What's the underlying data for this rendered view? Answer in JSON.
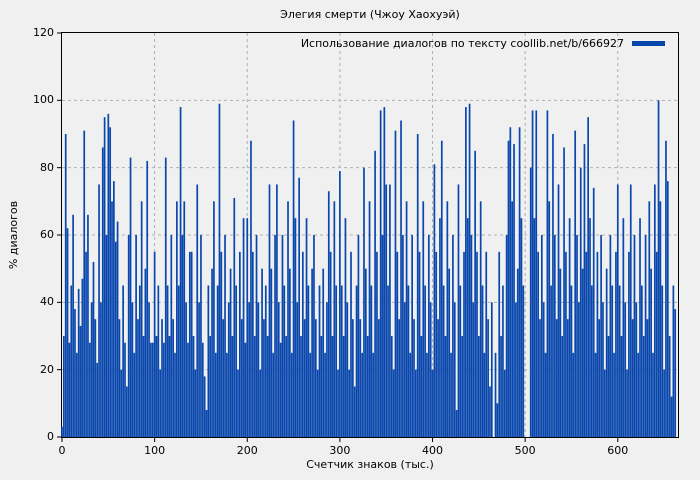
{
  "page_background": "#f0f0f0",
  "chart_data": {
    "type": "bar",
    "style": "impulses",
    "title": "Элегия смерти (Чжоу Хаохуэй)",
    "series_name": "Использование диалогов по тексту coollib.net/b/666927",
    "xlabel": "Счетчик знаков (тыс.)",
    "ylabel": "% диалогов",
    "xlim": [
      0,
      665
    ],
    "ylim": [
      0,
      120
    ],
    "x_ticks": [
      0,
      100,
      200,
      300,
      400,
      500,
      600
    ],
    "y_ticks": [
      0,
      20,
      40,
      60,
      80,
      100,
      120
    ],
    "grid": true,
    "legend_position": "top-right-inside",
    "bar_color": "#0a47ad",
    "axis_color": "#000000",
    "grid_color": "#b0b0b0",
    "x_start": 0,
    "x_step": 2,
    "values": [
      3,
      30,
      90,
      62,
      28,
      45,
      66,
      38,
      25,
      44,
      33,
      47,
      91,
      55,
      66,
      28,
      40,
      52,
      35,
      22,
      75,
      40,
      86,
      95,
      60,
      96,
      92,
      70,
      76,
      58,
      64,
      35,
      20,
      45,
      28,
      15,
      60,
      83,
      40,
      25,
      60,
      35,
      45,
      70,
      30,
      50,
      82,
      40,
      28,
      28,
      55,
      30,
      45,
      20,
      35,
      28,
      83,
      45,
      30,
      60,
      35,
      25,
      70,
      45,
      98,
      60,
      70,
      40,
      28,
      55,
      55,
      30,
      20,
      75,
      40,
      60,
      28,
      18,
      8,
      45,
      30,
      50,
      70,
      25,
      45,
      99,
      55,
      35,
      60,
      25,
      40,
      50,
      30,
      71,
      45,
      20,
      55,
      35,
      65,
      28,
      65,
      40,
      88,
      55,
      30,
      60,
      40,
      20,
      50,
      35,
      45,
      30,
      75,
      50,
      25,
      60,
      75,
      40,
      28,
      60,
      45,
      30,
      70,
      50,
      25,
      94,
      65,
      40,
      77,
      30,
      55,
      35,
      65,
      45,
      25,
      50,
      60,
      35,
      20,
      45,
      30,
      50,
      25,
      40,
      73,
      55,
      30,
      70,
      45,
      20,
      79,
      45,
      30,
      65,
      40,
      20,
      55,
      35,
      15,
      45,
      60,
      35,
      25,
      80,
      50,
      30,
      70,
      45,
      25,
      85,
      55,
      35,
      97,
      60,
      98,
      75,
      45,
      75,
      30,
      20,
      91,
      55,
      35,
      94,
      60,
      40,
      70,
      45,
      25,
      60,
      35,
      20,
      90,
      55,
      30,
      70,
      45,
      25,
      60,
      40,
      20,
      81,
      55,
      35,
      65,
      88,
      45,
      30,
      70,
      50,
      25,
      60,
      40,
      8,
      75,
      45,
      30,
      55,
      98,
      65,
      99,
      60,
      40,
      85,
      55,
      30,
      70,
      45,
      25,
      55,
      35,
      15,
      40,
      0,
      25,
      10,
      55,
      30,
      45,
      20,
      60,
      88,
      92,
      70,
      87,
      40,
      50,
      92,
      65,
      45,
      0,
      0,
      0,
      80,
      97,
      65,
      97,
      55,
      35,
      60,
      40,
      25,
      97,
      70,
      45,
      90,
      60,
      35,
      75,
      50,
      30,
      86,
      55,
      35,
      65,
      45,
      25,
      91,
      60,
      40,
      80,
      50,
      87,
      55,
      95,
      65,
      45,
      74,
      25,
      55,
      35,
      60,
      40,
      20,
      50,
      30,
      60,
      45,
      25,
      55,
      75,
      45,
      30,
      65,
      40,
      20,
      55,
      75,
      35,
      60,
      40,
      25,
      65,
      45,
      30,
      60,
      35,
      70,
      50,
      25,
      75,
      55,
      100,
      70,
      45,
      20,
      88,
      76,
      30,
      12,
      45,
      38
    ]
  }
}
